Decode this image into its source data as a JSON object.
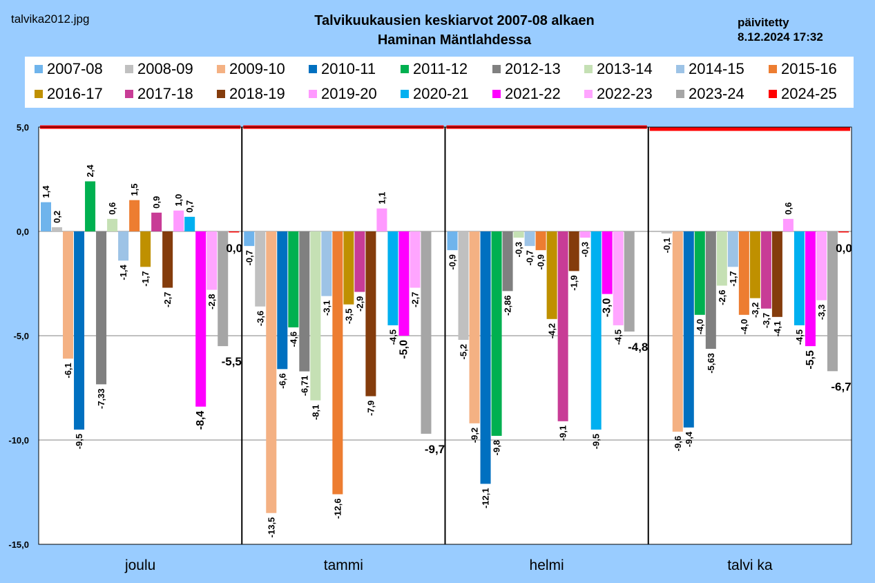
{
  "header": {
    "filename": "talvika2012.jpg",
    "title_line1": "Talvikuukausien keskiarvot 2007-08 alkaen",
    "title_line2": "Haminan Mäntlahdessa",
    "updated_label": "päivitetty",
    "updated_time": "8.12.2024 17:32"
  },
  "chart_data": {
    "type": "bar",
    "categories": [
      "joulu",
      "tammi",
      "helmi",
      "talvi ka"
    ],
    "y_ticks": [
      "5,0",
      "0,0",
      "-5,0",
      "-10,0",
      "-15,0"
    ],
    "ylim": [
      -15,
      5
    ],
    "grid": true,
    "legend_placement": "top",
    "series": [
      {
        "name": "2007-08",
        "color": "#6fb4ec",
        "values": [
          1.4,
          -0.7,
          -0.9,
          null
        ],
        "labels": [
          "1,4",
          "-0,7",
          "-0,9",
          ""
        ]
      },
      {
        "name": "2008-09",
        "color": "#c0c0c0",
        "values": [
          0.2,
          -3.6,
          -5.2,
          -0.1
        ],
        "labels": [
          "0,2",
          "-3,6",
          "-5,2",
          "-0,1"
        ]
      },
      {
        "name": "2009-10",
        "color": "#f4b183",
        "values": [
          -6.1,
          -13.5,
          -9.2,
          -9.6
        ],
        "labels": [
          "-6,1",
          "-13,5",
          "-9,2",
          "-9,6"
        ]
      },
      {
        "name": "2010-11",
        "color": "#0070c0",
        "values": [
          -9.5,
          -6.6,
          -12.1,
          -9.4
        ],
        "labels": [
          "-9,5",
          "-6,6",
          "-12,1",
          "-9,4"
        ]
      },
      {
        "name": "2011-12",
        "color": "#00b050",
        "values": [
          2.4,
          -4.6,
          -9.8,
          -4.0
        ],
        "labels": [
          "2,4",
          "-4,6",
          "-9,8",
          "-4,0"
        ]
      },
      {
        "name": "2012-13",
        "color": "#808080",
        "values": [
          -7.33,
          -6.71,
          -2.86,
          -5.63
        ],
        "labels": [
          "-7,33",
          "-6,71",
          "-2,86",
          "-5,63"
        ]
      },
      {
        "name": "2013-14",
        "color": "#c5e0b4",
        "values": [
          0.6,
          -8.1,
          -0.3,
          -2.6
        ],
        "labels": [
          "0,6",
          "-8,1",
          "-0,3",
          "-2,6"
        ]
      },
      {
        "name": "2014-15",
        "color": "#9dc3e6",
        "values": [
          -1.4,
          -3.1,
          -0.7,
          -1.7
        ],
        "labels": [
          "-1,4",
          "-3,1",
          "-0,7",
          "-1,7"
        ]
      },
      {
        "name": "2015-16",
        "color": "#ed7d31",
        "values": [
          1.5,
          -12.6,
          -0.9,
          -4.0
        ],
        "labels": [
          "1,5",
          "-12,6",
          "-0,9",
          "-4,0"
        ]
      },
      {
        "name": "2016-17",
        "color": "#bf9000",
        "values": [
          -1.7,
          -3.5,
          -4.2,
          -3.2
        ],
        "labels": [
          "-1,7",
          "-3,5",
          "-4,2",
          "-3,2"
        ]
      },
      {
        "name": "2017-18",
        "color": "#c83c96",
        "values": [
          0.9,
          -2.9,
          -9.1,
          -3.7
        ],
        "labels": [
          "0,9",
          "-2,9",
          "-9,1",
          "-3,7"
        ]
      },
      {
        "name": "2018-19",
        "color": "#843c0c",
        "values": [
          -2.7,
          -7.9,
          -1.9,
          -4.1
        ],
        "labels": [
          "-2,7",
          "-7,9",
          "-1,9",
          "-4,1"
        ]
      },
      {
        "name": "2019-20",
        "color": "#ff99ff",
        "values": [
          1.0,
          1.1,
          -0.3,
          0.6
        ],
        "labels": [
          "1,0",
          "1,1",
          "-0,3",
          "0,6"
        ]
      },
      {
        "name": "2020-21",
        "color": "#00b0f0",
        "values": [
          0.7,
          -4.5,
          -9.5,
          -4.5
        ],
        "labels": [
          "0,7",
          "-4,5",
          "-9,5",
          "-4,5"
        ]
      },
      {
        "name": "2021-22",
        "color": "#ff00ff",
        "values": [
          -8.4,
          -5.0,
          -3.0,
          -5.5
        ],
        "labels": [
          "-8,4",
          "-5,0",
          "-3,0",
          "-5,5"
        ]
      },
      {
        "name": "2022-23",
        "color": "#ffa5ff",
        "values": [
          -2.8,
          -2.7,
          -4.5,
          -3.3
        ],
        "labels": [
          "-2,8",
          "-2,7",
          "-4,5",
          "-3,3"
        ]
      },
      {
        "name": "2023-24",
        "color": "#a6a6a6",
        "values": [
          -5.5,
          -9.7,
          -4.8,
          -6.7
        ],
        "labels": [
          "-5,5",
          "-9,7",
          "-4,8",
          "-6,7"
        ]
      },
      {
        "name": "2024-25",
        "color": "#ff0000",
        "values": [
          0.0,
          null,
          null,
          0.0
        ],
        "labels": [
          "0,0",
          "",
          "",
          "0,0"
        ]
      }
    ],
    "reference_line": {
      "color": "#ff0000",
      "values": [
        5.0,
        5.0,
        5.0,
        4.9
      ]
    }
  }
}
